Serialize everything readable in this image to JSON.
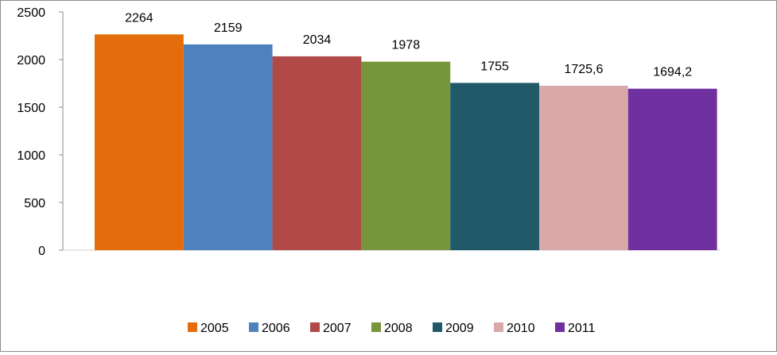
{
  "chart_data": {
    "type": "bar",
    "title": "",
    "xlabel": "",
    "ylabel": "",
    "ylim": [
      0,
      2500
    ],
    "yticks": [
      0,
      500,
      1000,
      1500,
      2000,
      2500
    ],
    "grid": false,
    "legend_position": "bottom",
    "series": [
      {
        "name": "2005",
        "value": 2264,
        "label": "2264",
        "color": "#E46C0A"
      },
      {
        "name": "2006",
        "value": 2159,
        "label": "2159",
        "color": "#4F81BD"
      },
      {
        "name": "2007",
        "value": 2034,
        "label": "2034",
        "color": "#B14A47"
      },
      {
        "name": "2008",
        "value": 1978,
        "label": "1978",
        "color": "#77963C"
      },
      {
        "name": "2009",
        "value": 1755,
        "label": "1755",
        "color": "#215968"
      },
      {
        "name": "2010",
        "value": 1725.6,
        "label": "1725,6",
        "color": "#D9A9AA"
      },
      {
        "name": "2011",
        "value": 1694.2,
        "label": "1694,2",
        "color": "#7030A0"
      }
    ]
  }
}
